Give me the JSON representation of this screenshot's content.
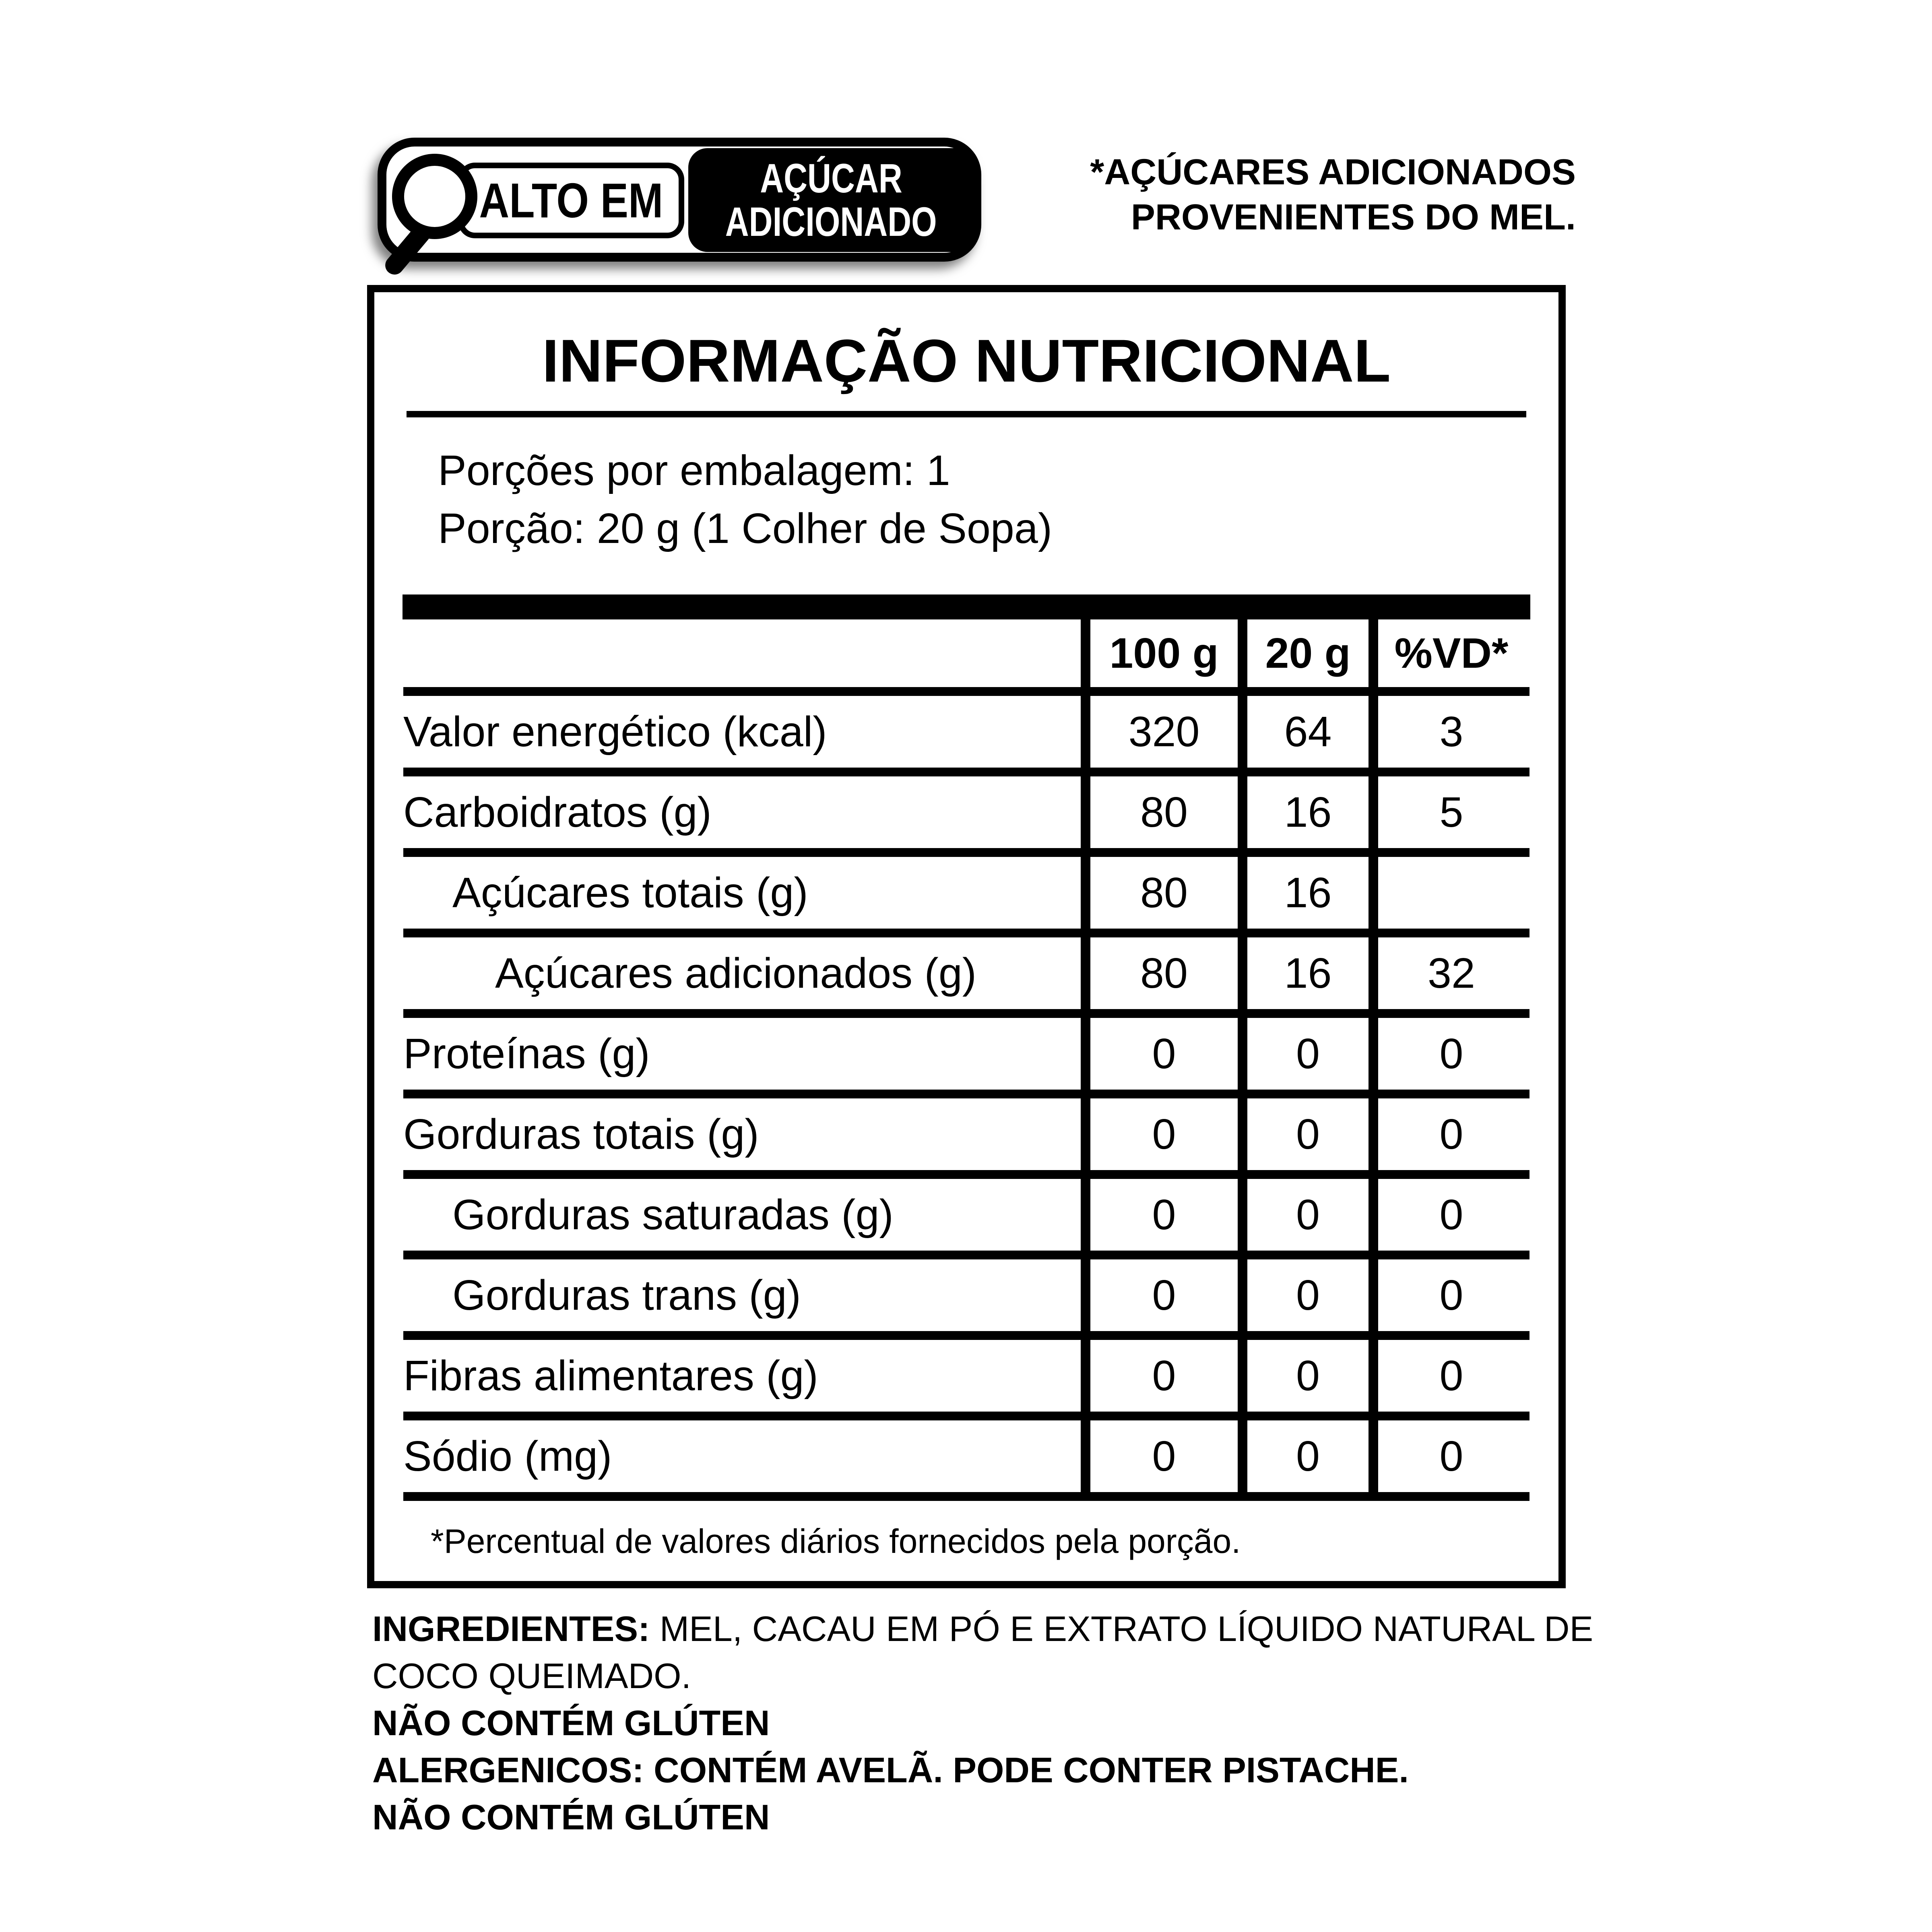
{
  "page": {
    "background_color": "#ffffff",
    "text_color": "#000000"
  },
  "warning_seal": {
    "icon": "magnifier-icon",
    "prefix_label": "ALTO EM",
    "subject_line1": "AÇÚCAR",
    "subject_line2": "ADICIONADO"
  },
  "asterisk_note": {
    "line1": "*AÇÚCARES ADICIONADOS",
    "line2": "PROVENIENTES DO MEL."
  },
  "nutrition_table": {
    "title": "INFORMAÇÃO NUTRICIONAL",
    "servings_line": "Porções por embalagem: 1",
    "serving_size_line": "Porção: 20 g (1 Colher de Sopa)",
    "columns": [
      "100 g",
      "20 g",
      "%VD*"
    ],
    "rows": [
      {
        "label": "Valor energético (kcal)",
        "per100": "320",
        "per20": "64",
        "vd": "3"
      },
      {
        "label": "Carboidratos (g)",
        "per100": "80",
        "per20": "16",
        "vd": "5"
      },
      {
        "label": "Açúcares totais (g)",
        "per100": "80",
        "per20": "16",
        "vd": ""
      },
      {
        "label": "Açúcares adicionados (g)",
        "per100": "80",
        "per20": "16",
        "vd": "32"
      },
      {
        "label": "Proteínas (g)",
        "per100": "0",
        "per20": "0",
        "vd": "0"
      },
      {
        "label": "Gorduras totais (g)",
        "per100": "0",
        "per20": "0",
        "vd": "0"
      },
      {
        "label": "Gorduras saturadas (g)",
        "per100": "0",
        "per20": "0",
        "vd": "0"
      },
      {
        "label": "Gorduras trans (g)",
        "per100": "0",
        "per20": "0",
        "vd": "0"
      },
      {
        "label": "Fibras alimentares (g)",
        "per100": "0",
        "per20": "0",
        "vd": "0"
      },
      {
        "label": "Sódio (mg)",
        "per100": "0",
        "per20": "0",
        "vd": "0"
      }
    ],
    "footnote": "*Percentual de valores diários fornecidos pela porção."
  },
  "bottom_text": {
    "ingredients_label": "INGREDIENTES:",
    "ingredients_value": " MEL, CACAU EM PÓ E EXTRATO LÍQUIDO NATURAL DE COCO QUEIMADO.",
    "gluten_line1": "NÃO CONTÉM GLÚTEN",
    "allergens_line": "ALERGENICOS: CONTÉM AVELÃ. PODE CONTER PISTACHE.",
    "gluten_line2": "NÃO CONTÉM GLÚTEN"
  }
}
